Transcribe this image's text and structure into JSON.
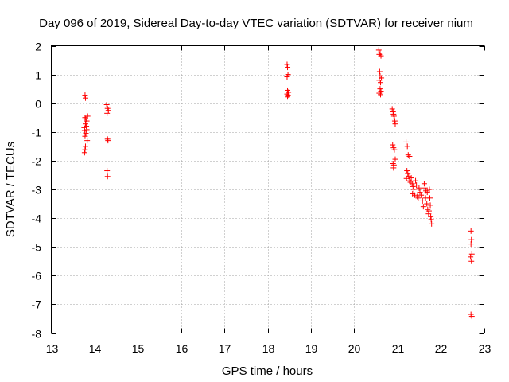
{
  "chart_data": {
    "type": "scatter",
    "title": "Day 096 of 2019, Sidereal Day-to-day VTEC variation (SDTVAR) for receiver nium",
    "xlabel": "GPS time / hours",
    "ylabel": "SDTVAR / TECUs",
    "xlim": [
      13,
      23
    ],
    "ylim": [
      -8,
      2
    ],
    "xticks": [
      13,
      14,
      15,
      16,
      17,
      18,
      19,
      20,
      21,
      22,
      23
    ],
    "yticks": [
      2,
      1,
      0,
      -1,
      -2,
      -3,
      -4,
      -5,
      -6,
      -7,
      -8
    ],
    "grid": true,
    "marker": "+",
    "series": [
      {
        "name": "SDTVAR",
        "color": "#ff0000",
        "points": [
          [
            13.78,
            0.28
          ],
          [
            13.79,
            0.18
          ],
          [
            13.78,
            -0.5
          ],
          [
            13.8,
            -0.55
          ],
          [
            13.82,
            -0.62
          ],
          [
            13.79,
            -0.72
          ],
          [
            13.81,
            -0.8
          ],
          [
            13.77,
            -0.95
          ],
          [
            13.8,
            -1.05
          ],
          [
            13.78,
            -1.15
          ],
          [
            13.83,
            -1.3
          ],
          [
            13.79,
            -1.5
          ],
          [
            13.78,
            -1.62
          ],
          [
            13.77,
            -1.72
          ],
          [
            13.84,
            -0.45
          ],
          [
            13.76,
            -0.85
          ],
          [
            13.82,
            -0.92
          ],
          [
            14.28,
            -0.05
          ],
          [
            14.3,
            -0.18
          ],
          [
            14.32,
            -0.25
          ],
          [
            14.29,
            -0.35
          ],
          [
            14.3,
            -1.25
          ],
          [
            14.31,
            -1.3
          ],
          [
            14.29,
            -2.35
          ],
          [
            14.3,
            -2.55
          ],
          [
            18.45,
            1.35
          ],
          [
            18.46,
            1.25
          ],
          [
            18.47,
            1.0
          ],
          [
            18.45,
            0.92
          ],
          [
            18.46,
            0.45
          ],
          [
            18.48,
            0.38
          ],
          [
            18.45,
            0.32
          ],
          [
            18.47,
            0.28
          ],
          [
            18.46,
            0.22
          ],
          [
            20.57,
            1.85
          ],
          [
            20.6,
            1.75
          ],
          [
            20.58,
            1.7
          ],
          [
            20.62,
            1.65
          ],
          [
            20.59,
            1.1
          ],
          [
            20.6,
            0.95
          ],
          [
            20.63,
            0.88
          ],
          [
            20.58,
            0.8
          ],
          [
            20.61,
            0.72
          ],
          [
            20.6,
            0.5
          ],
          [
            20.62,
            0.42
          ],
          [
            20.58,
            0.35
          ],
          [
            20.61,
            0.3
          ],
          [
            20.88,
            -0.2
          ],
          [
            20.9,
            -0.3
          ],
          [
            20.91,
            -0.38
          ],
          [
            20.92,
            -0.45
          ],
          [
            20.93,
            -0.55
          ],
          [
            20.94,
            -0.62
          ],
          [
            20.95,
            -0.72
          ],
          [
            20.89,
            -1.45
          ],
          [
            20.91,
            -1.55
          ],
          [
            20.93,
            -1.62
          ],
          [
            20.95,
            -1.95
          ],
          [
            20.9,
            -2.1
          ],
          [
            20.92,
            -2.15
          ],
          [
            20.91,
            -2.25
          ],
          [
            21.2,
            -1.35
          ],
          [
            21.23,
            -1.5
          ],
          [
            21.25,
            -1.8
          ],
          [
            21.28,
            -1.85
          ],
          [
            21.22,
            -2.35
          ],
          [
            21.24,
            -2.45
          ],
          [
            21.26,
            -2.55
          ],
          [
            21.21,
            -2.62
          ],
          [
            21.28,
            -2.7
          ],
          [
            21.3,
            -2.75
          ],
          [
            21.32,
            -2.6
          ],
          [
            21.34,
            -2.8
          ],
          [
            21.36,
            -2.9
          ],
          [
            21.38,
            -3.0
          ],
          [
            21.35,
            -3.15
          ],
          [
            21.4,
            -3.2
          ],
          [
            21.42,
            -2.7
          ],
          [
            21.44,
            -2.85
          ],
          [
            21.46,
            -3.25
          ],
          [
            21.48,
            -3.3
          ],
          [
            21.5,
            -2.95
          ],
          [
            21.52,
            -3.1
          ],
          [
            21.55,
            -3.2
          ],
          [
            21.58,
            -3.4
          ],
          [
            21.6,
            -3.6
          ],
          [
            21.62,
            -2.8
          ],
          [
            21.64,
            -2.95
          ],
          [
            21.66,
            -3.05
          ],
          [
            21.68,
            -3.5
          ],
          [
            21.7,
            -3.7
          ],
          [
            21.72,
            -3.85
          ],
          [
            21.74,
            -3.0
          ],
          [
            21.75,
            -3.3
          ],
          [
            21.76,
            -3.55
          ],
          [
            21.77,
            -3.95
          ],
          [
            21.78,
            -4.05
          ],
          [
            21.79,
            -4.2
          ],
          [
            21.73,
            -3.75
          ],
          [
            21.69,
            -3.1
          ],
          [
            21.65,
            -3.3
          ],
          [
            22.7,
            -4.45
          ],
          [
            22.71,
            -4.75
          ],
          [
            22.7,
            -4.9
          ],
          [
            22.72,
            -5.25
          ],
          [
            22.69,
            -5.35
          ],
          [
            22.71,
            -5.5
          ],
          [
            22.7,
            -7.35
          ],
          [
            22.72,
            -7.42
          ]
        ]
      }
    ]
  }
}
